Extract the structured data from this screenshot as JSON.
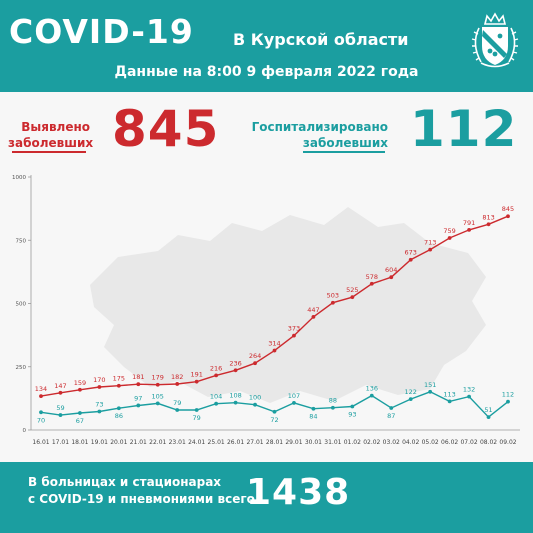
{
  "header": {
    "title": "COVID-19",
    "region": "В Курской области",
    "date_line": "Данные на 8:00 9 февраля 2022 года",
    "coat_icon": "kursk-coat-of-arms-icon"
  },
  "stats": {
    "detected_label_line1": "Выявлено",
    "detected_label_line2": "заболевших",
    "detected_value": "845",
    "hospitalized_label_line1": "Госпитализировано",
    "hospitalized_label_line2": "заболевших",
    "hospitalized_value": "112"
  },
  "footer": {
    "text_line1": "В больницах и стационарах",
    "text_line2": "с COVID-19 и пневмониями всего",
    "value": "1438"
  },
  "colors": {
    "teal": "#1b9ea0",
    "red": "#cc2a2e",
    "map": "#e8e8e8"
  },
  "chart_data": {
    "type": "line",
    "categories": [
      "16.01",
      "17.01",
      "18.01",
      "19.01",
      "20.01",
      "21.01",
      "22.01",
      "23.01",
      "24.01",
      "25.01",
      "26.01",
      "27.01",
      "28.01",
      "29.01",
      "30.01",
      "31.01",
      "01.02",
      "02.02",
      "03.02",
      "04.02",
      "05.02",
      "06.02",
      "07.02",
      "08.02",
      "09.02"
    ],
    "series": [
      {
        "color": "#cc2a2e",
        "values": [
          134,
          147,
          159,
          170,
          175,
          181,
          179,
          182,
          191,
          216,
          236,
          264,
          314,
          373,
          447,
          503,
          525,
          578,
          604,
          673,
          713,
          759,
          791,
          813,
          845
        ]
      },
      {
        "color": "#1b9ea0",
        "values": [
          70,
          59,
          67,
          73,
          86,
          97,
          105,
          79,
          79,
          104,
          108,
          100,
          72,
          107,
          84,
          88,
          93,
          136,
          87,
          122,
          151,
          113,
          132,
          51,
          112
        ]
      }
    ],
    "yticks": [
      0,
      250,
      500,
      750,
      1000
    ],
    "ylim": [
      0,
      1000
    ],
    "grid": false
  }
}
